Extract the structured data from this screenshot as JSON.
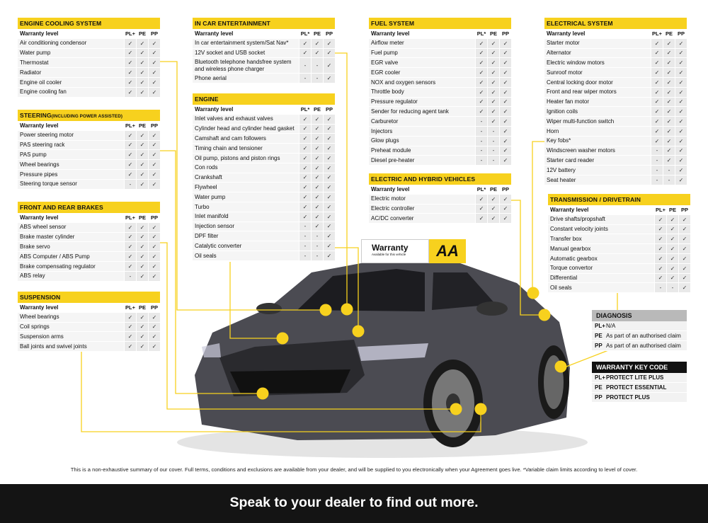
{
  "columns": {
    "label": "Warranty level",
    "pl": "PL+",
    "pe": "PE",
    "pp": "PP",
    "pl_alt": "PL*"
  },
  "tables": [
    {
      "id": "engine-cooling",
      "title": "ENGINE COOLING SYSTEM",
      "rows": [
        [
          "Air conditioning condensor",
          "✓",
          "✓",
          "✓"
        ],
        [
          "Water pump",
          "✓",
          "✓",
          "✓"
        ],
        [
          "Thermostat",
          "✓",
          "✓",
          "✓"
        ],
        [
          "Radiator",
          "✓",
          "✓",
          "✓"
        ],
        [
          "Engine oil cooler",
          "✓",
          "✓",
          "✓"
        ],
        [
          "Engine cooling fan",
          "✓",
          "✓",
          "✓"
        ]
      ]
    },
    {
      "id": "steering",
      "title": "STEERING",
      "subtitle": "(INCLUDING POWER ASSISTED)",
      "rows": [
        [
          "Power steering motor",
          "✓",
          "✓",
          "✓"
        ],
        [
          "PAS steering rack",
          "✓",
          "✓",
          "✓"
        ],
        [
          "PAS pump",
          "✓",
          "✓",
          "✓"
        ],
        [
          "Wheel bearings",
          "✓",
          "✓",
          "✓"
        ],
        [
          "Pressure pipes",
          "✓",
          "✓",
          "✓"
        ],
        [
          "Steering torque sensor",
          "-",
          "✓",
          "✓"
        ]
      ]
    },
    {
      "id": "brakes",
      "title": "FRONT AND REAR BRAKES",
      "rows": [
        [
          "ABS wheel sensor",
          "✓",
          "✓",
          "✓"
        ],
        [
          "Brake master cylinder",
          "✓",
          "✓",
          "✓"
        ],
        [
          "Brake servo",
          "✓",
          "✓",
          "✓"
        ],
        [
          "ABS Computer / ABS Pump",
          "✓",
          "✓",
          "✓"
        ],
        [
          "Brake compensating regulator",
          "✓",
          "✓",
          "✓"
        ],
        [
          "ABS relay",
          "-",
          "✓",
          "✓"
        ]
      ]
    },
    {
      "id": "suspension",
      "title": "SUSPENSION",
      "rows": [
        [
          "Wheel bearings",
          "✓",
          "✓",
          "✓"
        ],
        [
          "Coil springs",
          "✓",
          "✓",
          "✓"
        ],
        [
          "Suspension arms",
          "✓",
          "✓",
          "✓"
        ],
        [
          "Ball joints and swivel joints",
          "✓",
          "✓",
          "✓"
        ]
      ]
    },
    {
      "id": "in-car-entertainment",
      "title": "IN CAR ENTERTAINMENT",
      "alt": true,
      "rows": [
        [
          "In car entertainment system/Sat Nav*",
          "✓",
          "✓",
          "✓"
        ],
        [
          "12V socket and USB socket",
          "✓",
          "✓",
          "✓"
        ],
        [
          "Bluetooth telephone handsfree system and wireless phone charger",
          "-",
          "-",
          "✓"
        ],
        [
          "Phone aerial",
          "-",
          "-",
          "✓"
        ]
      ]
    },
    {
      "id": "engine",
      "title": "ENGINE",
      "alt": true,
      "rows": [
        [
          "Inlet valves and exhaust valves",
          "✓",
          "✓",
          "✓"
        ],
        [
          "Cylinder head and cylinder head gasket",
          "✓",
          "✓",
          "✓"
        ],
        [
          "Camshaft and cam followers",
          "✓",
          "✓",
          "✓"
        ],
        [
          "Timing chain and tensioner",
          "✓",
          "✓",
          "✓"
        ],
        [
          "Oil pump, pistons and piston rings",
          "✓",
          "✓",
          "✓"
        ],
        [
          "Con rods",
          "✓",
          "✓",
          "✓"
        ],
        [
          "Crankshaft",
          "✓",
          "✓",
          "✓"
        ],
        [
          "Flywheel",
          "✓",
          "✓",
          "✓"
        ],
        [
          "Water pump",
          "✓",
          "✓",
          "✓"
        ],
        [
          "Turbo",
          "✓",
          "✓",
          "✓"
        ],
        [
          "Inlet manifold",
          "✓",
          "✓",
          "✓"
        ],
        [
          "Injection sensor",
          "-",
          "✓",
          "✓"
        ],
        [
          "DPF filter",
          "-",
          "-",
          "✓"
        ],
        [
          "Catalytic converter",
          "-",
          "-",
          "✓"
        ],
        [
          "Oil seals",
          "-",
          "-",
          "✓"
        ]
      ]
    },
    {
      "id": "fuel-system",
      "title": "FUEL SYSTEM",
      "alt": true,
      "rows": [
        [
          "Airflow meter",
          "✓",
          "✓",
          "✓"
        ],
        [
          "Fuel pump",
          "✓",
          "✓",
          "✓"
        ],
        [
          "EGR valve",
          "✓",
          "✓",
          "✓"
        ],
        [
          "EGR cooler",
          "✓",
          "✓",
          "✓"
        ],
        [
          "NOX and oxygen sensors",
          "✓",
          "✓",
          "✓"
        ],
        [
          "Throttle body",
          "✓",
          "✓",
          "✓"
        ],
        [
          "Pressure regulator",
          "✓",
          "✓",
          "✓"
        ],
        [
          "Sender for reducing agent tank",
          "✓",
          "✓",
          "✓"
        ],
        [
          "Carburetor",
          "-",
          "✓",
          "✓"
        ],
        [
          "Injectors",
          "-",
          "-",
          "✓"
        ],
        [
          "Glow plugs",
          "-",
          "-",
          "✓"
        ],
        [
          "Preheat module",
          "-",
          "-",
          "✓"
        ],
        [
          "Diesel pre-heater",
          "-",
          "-",
          "✓"
        ]
      ]
    },
    {
      "id": "electric-hybrid",
      "title": "ELECTRIC AND HYBRID VEHICLES",
      "alt": true,
      "rows": [
        [
          "Electric motor",
          "✓",
          "✓",
          "✓"
        ],
        [
          "Electric controller",
          "✓",
          "✓",
          "✓"
        ],
        [
          "AC/DC converter",
          "✓",
          "✓",
          "✓"
        ]
      ]
    },
    {
      "id": "electrical",
      "title": "ELECTRICAL SYSTEM",
      "rows": [
        [
          "Starter motor",
          "✓",
          "✓",
          "✓"
        ],
        [
          "Alternator",
          "✓",
          "✓",
          "✓"
        ],
        [
          "Electric window motors",
          "✓",
          "✓",
          "✓"
        ],
        [
          "Sunroof motor",
          "✓",
          "✓",
          "✓"
        ],
        [
          "Central locking door motor",
          "✓",
          "✓",
          "✓"
        ],
        [
          "Front and rear wiper motors",
          "✓",
          "✓",
          "✓"
        ],
        [
          "Heater fan motor",
          "✓",
          "✓",
          "✓"
        ],
        [
          "Ignition coils",
          "✓",
          "✓",
          "✓"
        ],
        [
          "Wiper multi-function switch",
          "✓",
          "✓",
          "✓"
        ],
        [
          "Horn",
          "✓",
          "✓",
          "✓"
        ],
        [
          "Key fobs*",
          "✓",
          "✓",
          "✓"
        ],
        [
          "Windscreen washer motors",
          "-",
          "✓",
          "✓"
        ],
        [
          "Starter card reader",
          "-",
          "✓",
          "✓"
        ],
        [
          "12V battery",
          "-",
          "-",
          "✓"
        ],
        [
          "Seat heater",
          "-",
          "-",
          "✓"
        ]
      ]
    },
    {
      "id": "transmission",
      "title": "TRANSMISSION / DRIVETRAIN",
      "rows": [
        [
          "Drive shafts/propshaft",
          "✓",
          "✓",
          "✓"
        ],
        [
          "Constant velocity joints",
          "✓",
          "✓",
          "✓"
        ],
        [
          "Transfer box",
          "✓",
          "✓",
          "✓"
        ],
        [
          "Manual gearbox",
          "✓",
          "✓",
          "✓"
        ],
        [
          "Automatic gearbox",
          "✓",
          "✓",
          "✓"
        ],
        [
          "Torque convertor",
          "✓",
          "✓",
          "✓"
        ],
        [
          "Differential",
          "✓",
          "✓",
          "✓"
        ],
        [
          "Oil seals",
          "-",
          "-",
          "✓"
        ]
      ]
    }
  ],
  "diagnosis": {
    "title": "DIAGNOSIS",
    "rows": [
      [
        "PL+",
        "N/A"
      ],
      [
        "PE",
        "As part of an authorised claim"
      ],
      [
        "PP",
        "As part of an authorised claim"
      ]
    ]
  },
  "key_code": {
    "title": "WARRANTY KEY CODE",
    "rows": [
      [
        "PL+",
        "PROTECT LITE PLUS"
      ],
      [
        "PE",
        "PROTECT ESSENTIAL"
      ],
      [
        "PP",
        "PROTECT PLUS"
      ]
    ]
  },
  "sign": {
    "title": "Warranty",
    "subtitle": "Available for this vehicle",
    "logo": "AA"
  },
  "footnote": "This is a non-exhaustive summary of our cover. Full terms, conditions and exclusions are available from your dealer, and will be supplied to you electronically when your Agreement goes live. *Variable claim  limits according to level of cover.",
  "banner": "Speak to your dealer to find out more.",
  "colors": {
    "accent": "#f7d11e",
    "car": "#4a4a50",
    "banner": "#141414",
    "diagnosis_header": "#b9b9b9"
  }
}
